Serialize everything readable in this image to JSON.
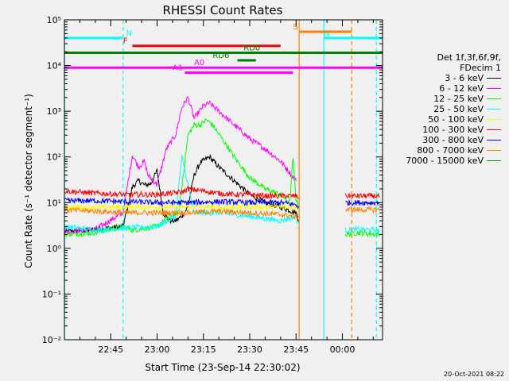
{
  "chart_data": {
    "type": "line",
    "title": "RHESSI Count Rates",
    "xlabel": "Start Time (23-Sep-14 22:30:02)",
    "ylabel": "Count Rate (s⁻¹ detector segment⁻¹)",
    "yscale": "log",
    "ylim": [
      0.01,
      100000
    ],
    "x_unit": "minutes from 22:30:02",
    "xlim": [
      0,
      103
    ],
    "xticks": [
      {
        "m": 15,
        "label": "22:45"
      },
      {
        "m": 30,
        "label": "23:00"
      },
      {
        "m": 45,
        "label": "23:15"
      },
      {
        "m": 60,
        "label": "23:30"
      },
      {
        "m": 75,
        "label": "23:45"
      },
      {
        "m": 90,
        "label": "00:00"
      }
    ],
    "yticks": [
      {
        "v": 0.01,
        "label": "10⁻²"
      },
      {
        "v": 0.1,
        "label": "10⁻¹"
      },
      {
        "v": 1,
        "label": "10⁰"
      },
      {
        "v": 10,
        "label": "10¹"
      },
      {
        "v": 100,
        "label": "10²"
      },
      {
        "v": 1000,
        "label": "10³"
      },
      {
        "v": 10000,
        "label": "10⁴"
      },
      {
        "v": 100000,
        "label": "10⁵"
      }
    ],
    "series": [
      {
        "name": "3 - 6 keV",
        "color": "#000000",
        "points": [
          [
            0,
            2.3
          ],
          [
            10,
            2.6
          ],
          [
            19,
            3
          ],
          [
            22,
            22
          ],
          [
            24,
            30
          ],
          [
            26,
            24
          ],
          [
            28,
            26
          ],
          [
            30,
            50
          ],
          [
            32,
            6
          ],
          [
            34,
            4
          ],
          [
            36,
            4
          ],
          [
            38,
            5
          ],
          [
            40,
            8
          ],
          [
            42,
            40
          ],
          [
            44,
            75
          ],
          [
            47,
            100
          ],
          [
            50,
            60
          ],
          [
            55,
            30
          ],
          [
            60,
            15
          ],
          [
            65,
            10
          ],
          [
            70,
            8
          ],
          [
            75,
            6
          ],
          [
            76,
            4
          ]
        ]
      },
      {
        "name": "6 - 12 keV",
        "color": "#ff00ff",
        "points": [
          [
            0,
            2.3
          ],
          [
            10,
            2.6
          ],
          [
            19,
            6
          ],
          [
            22,
            110
          ],
          [
            24,
            60
          ],
          [
            26,
            80
          ],
          [
            27,
            40
          ],
          [
            30,
            25
          ],
          [
            33,
            150
          ],
          [
            36,
            300
          ],
          [
            38,
            1200
          ],
          [
            40,
            2000
          ],
          [
            42,
            700
          ],
          [
            45,
            1300
          ],
          [
            47,
            1500
          ],
          [
            50,
            1000
          ],
          [
            55,
            500
          ],
          [
            60,
            250
          ],
          [
            65,
            150
          ],
          [
            70,
            80
          ],
          [
            72,
            55
          ],
          [
            75,
            30
          ]
        ]
      },
      {
        "name": "12 - 25 keV",
        "color": "#00ff00",
        "points": [
          [
            0,
            2
          ],
          [
            10,
            2.2
          ],
          [
            19,
            3
          ],
          [
            22,
            2.5
          ],
          [
            30,
            3
          ],
          [
            34,
            5
          ],
          [
            37,
            6
          ],
          [
            40,
            300
          ],
          [
            42,
            500
          ],
          [
            44,
            500
          ],
          [
            46,
            650
          ],
          [
            48,
            500
          ],
          [
            52,
            200
          ],
          [
            56,
            80
          ],
          [
            60,
            35
          ],
          [
            65,
            20
          ],
          [
            70,
            15
          ],
          [
            73,
            10
          ],
          [
            74,
            100
          ],
          [
            75,
            12
          ],
          [
            76,
            8
          ],
          [
            90,
            null
          ],
          [
            91,
            2
          ],
          [
            95,
            2.2
          ],
          [
            102,
            2
          ]
        ]
      },
      {
        "name": "25 - 50 keV",
        "color": "#00ffff",
        "points": [
          [
            0,
            3
          ],
          [
            10,
            2.5
          ],
          [
            20,
            2.8
          ],
          [
            30,
            3
          ],
          [
            36,
            5
          ],
          [
            38,
            100
          ],
          [
            40,
            25
          ],
          [
            42,
            6
          ],
          [
            50,
            6
          ],
          [
            60,
            5
          ],
          [
            70,
            4
          ],
          [
            75,
            5
          ],
          [
            76,
            3
          ],
          [
            90,
            null
          ],
          [
            91,
            2.5
          ],
          [
            95,
            2.6
          ],
          [
            102,
            2.5
          ]
        ]
      },
      {
        "name": "50 - 100 keV",
        "color": "#ffff00",
        "points": [
          [
            0,
            8
          ],
          [
            20,
            8
          ],
          [
            40,
            8
          ],
          [
            60,
            8
          ],
          [
            76,
            8
          ]
        ]
      },
      {
        "name": "100 - 300 keV",
        "color": "#ff0000",
        "points": [
          [
            0,
            18
          ],
          [
            10,
            16
          ],
          [
            20,
            15
          ],
          [
            30,
            15
          ],
          [
            38,
            17
          ],
          [
            40,
            20
          ],
          [
            45,
            18
          ],
          [
            50,
            16
          ],
          [
            55,
            15
          ],
          [
            60,
            15
          ],
          [
            65,
            14
          ],
          [
            70,
            14
          ],
          [
            75,
            14
          ],
          [
            76,
            13
          ],
          [
            90,
            null
          ],
          [
            91,
            14
          ],
          [
            95,
            14
          ],
          [
            102,
            14
          ]
        ]
      },
      {
        "name": "300 - 800 keV",
        "color": "#0000ff",
        "points": [
          [
            0,
            11
          ],
          [
            10,
            11
          ],
          [
            20,
            10.5
          ],
          [
            30,
            10
          ],
          [
            40,
            10
          ],
          [
            50,
            10.5
          ],
          [
            60,
            10
          ],
          [
            70,
            10
          ],
          [
            75,
            9
          ],
          [
            76,
            8
          ],
          [
            90,
            null
          ],
          [
            91,
            10
          ],
          [
            95,
            10
          ],
          [
            102,
            10
          ]
        ]
      },
      {
        "name": "800 - 7000 keV",
        "color": "#ff8000",
        "points": [
          [
            0,
            7
          ],
          [
            10,
            6.5
          ],
          [
            20,
            6
          ],
          [
            30,
            6
          ],
          [
            40,
            6
          ],
          [
            50,
            6.5
          ],
          [
            60,
            6
          ],
          [
            70,
            5.5
          ],
          [
            75,
            5
          ],
          [
            76,
            5
          ],
          [
            90,
            null
          ],
          [
            91,
            7
          ],
          [
            95,
            7
          ],
          [
            102,
            7
          ]
        ]
      },
      {
        "name": "7000 - 15000 keV",
        "color": "#00a000",
        "points": []
      }
    ],
    "attenuator_bars": [
      {
        "label": "N",
        "color": "#00ffff",
        "x0": 0,
        "x1": 19,
        "y": 40000,
        "label_x": 20
      },
      {
        "label": "N",
        "color": "#00ffff",
        "x0": 84,
        "x1": 103,
        "y": 40000
      },
      {
        "label": "F",
        "color": "#ff0000",
        "x0": 22,
        "x1": 70,
        "y": 27000,
        "label_x": 19
      },
      {
        "label": "S",
        "color": "#ff8000",
        "x0": 76,
        "x1": 93,
        "y": 55000,
        "label_x": 74
      },
      {
        "label": "",
        "color": "#008000",
        "x0": 0,
        "x1": 103,
        "y": 19000
      },
      {
        "label": "RD6",
        "color": "#008000",
        "x0": 56,
        "x1": 62,
        "y": 13000,
        "label_x": 48
      },
      {
        "label": "RD0",
        "color": "#008000",
        "x0": 60,
        "x1": 62,
        "y": 19000,
        "label_x": 58
      },
      {
        "label": "A0",
        "color": "#ff00ff",
        "x0": 0,
        "x1": 103,
        "y": 9000,
        "label_x": 42
      },
      {
        "label": "A1",
        "color": "#ff00ff",
        "x0": 39,
        "x1": 74,
        "y": 7000,
        "label_x": 35
      }
    ],
    "vlines": [
      {
        "m": 0,
        "color": "#00ffff",
        "style": "solid"
      },
      {
        "m": 19,
        "color": "#00ffff",
        "style": "dashed"
      },
      {
        "m": 76,
        "color": "#ff8000",
        "style": "solid"
      },
      {
        "m": 84,
        "color": "#00ffff",
        "style": "solid"
      },
      {
        "m": 93,
        "color": "#ff8000",
        "style": "dashed"
      },
      {
        "m": 101,
        "color": "#00ffff",
        "style": "dashed"
      }
    ]
  },
  "legend": {
    "header": [
      "Det 1f,3f,6f,9f,",
      "FDecim 1"
    ],
    "entries": [
      {
        "label": "3 - 6 keV",
        "color": "#000000"
      },
      {
        "label": "6 - 12 keV",
        "color": "#ff00ff"
      },
      {
        "label": "12 - 25 keV",
        "color": "#00ff00"
      },
      {
        "label": "25 - 50 keV",
        "color": "#00ffff"
      },
      {
        "label": "50 - 100 keV",
        "color": "#ffff00"
      },
      {
        "label": "100 - 300 keV",
        "color": "#ff0000"
      },
      {
        "label": "300 - 800 keV",
        "color": "#0000ff"
      },
      {
        "label": "800 - 7000 keV",
        "color": "#ff8000"
      },
      {
        "label": "7000 - 15000 keV",
        "color": "#00a000"
      }
    ]
  },
  "timestamp": "20-Oct-2021 08:22"
}
